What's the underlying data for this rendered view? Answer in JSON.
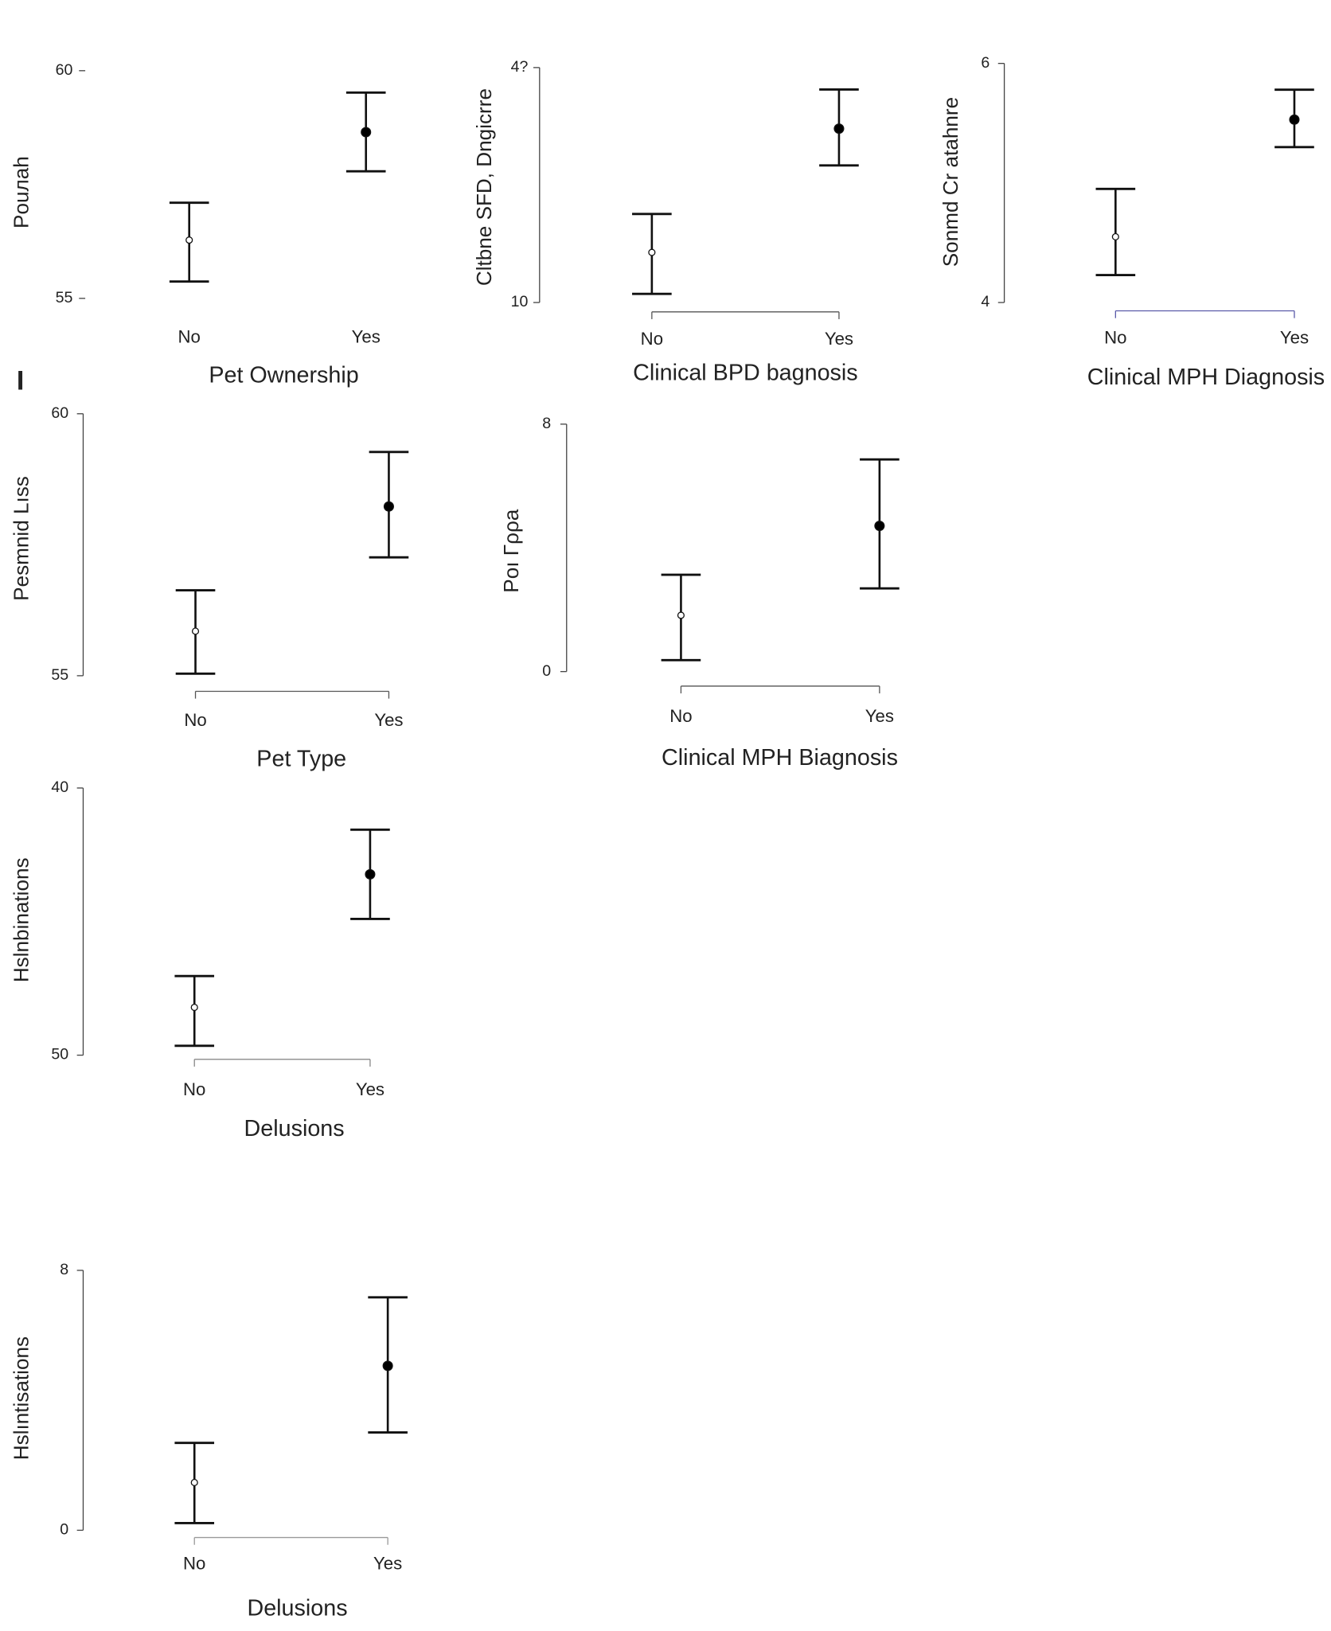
{
  "panel_label": "I",
  "chart_data": [
    {
      "type": "errorbar",
      "ylabel": "Pouлah",
      "xlabel": "Pet Ownership",
      "categories": [
        "No",
        "Yes"
      ],
      "values": [
        56.28,
        58.65
      ],
      "lower": [
        55.37,
        57.79
      ],
      "upper": [
        57.1,
        59.52
      ],
      "marker_colors": [
        "#ffffff",
        "#000000"
      ],
      "ylim": [
        55,
        60
      ],
      "yticks": [
        55,
        60
      ]
    },
    {
      "type": "errorbar",
      "ylabel": "Cltbne SFD, Dngicrre",
      "xlabel": "Clinical BPD bagnosis",
      "categories": [
        "No",
        "Yes"
      ],
      "values": [
        16.4,
        32.2
      ],
      "lower": [
        11.1,
        27.5
      ],
      "upper": [
        21.3,
        37.2
      ],
      "marker_colors": [
        "#ffffff",
        "#000000"
      ],
      "ylim": [
        10,
        40
      ],
      "yticks": [
        10,
        {
          "value": 40,
          "label": "4?"
        }
      ]
    },
    {
      "type": "errorbar",
      "ylabel": "Sonmd Cr atahnre",
      "xlabel": "Clinical MPH Diagnosis",
      "categories": [
        "No",
        "Yes"
      ],
      "values": [
        4.55,
        5.53
      ],
      "lower": [
        4.23,
        5.3
      ],
      "upper": [
        4.95,
        5.78
      ],
      "marker_colors": [
        "#ffffff",
        "#000000"
      ],
      "ylim": [
        4,
        6
      ],
      "yticks": [
        4,
        6
      ]
    },
    {
      "type": "errorbar",
      "ylabel": "Pesmnid Lıss",
      "xlabel": "Pet Type",
      "categories": [
        "No",
        "Yes"
      ],
      "values": [
        55.85,
        58.23
      ],
      "lower": [
        55.04,
        57.26
      ],
      "upper": [
        56.63,
        59.27
      ],
      "marker_colors": [
        "#ffffff",
        "#000000"
      ],
      "ylim": [
        55,
        60
      ],
      "yticks": [
        55,
        60
      ]
    },
    {
      "type": "errorbar",
      "ylabel": "Poı Γρρa",
      "xlabel": "Clinical MPH Biagnosis",
      "categories": [
        "No",
        "Yes"
      ],
      "values": [
        1.82,
        4.71
      ],
      "lower": [
        0.37,
        2.69
      ],
      "upper": [
        3.13,
        6.86
      ],
      "marker_colors": [
        "#ffffff",
        "#000000"
      ],
      "ylim": [
        0,
        8
      ],
      "yticks": [
        0,
        8
      ]
    },
    {
      "type": "errorbar",
      "ylabel": "Hslnbinations",
      "xlabel": "Delusions",
      "categories": [
        "No",
        "Yes"
      ],
      "values": [
        48.21,
        43.23
      ],
      "lower": [
        47.04,
        41.56
      ],
      "upper": [
        49.65,
        44.9
      ],
      "marker_colors": [
        "#ffffff",
        "#000000"
      ],
      "ylim": [
        50,
        40
      ],
      "yticks": [
        50,
        40
      ]
    },
    {
      "type": "errorbar",
      "ylabel": "Hslıntisations",
      "xlabel": "Delusions",
      "categories": [
        "No",
        "Yes"
      ],
      "values": [
        1.47,
        5.06
      ],
      "lower": [
        0.22,
        3.01
      ],
      "upper": [
        2.69,
        7.17
      ],
      "marker_colors": [
        "#ffffff",
        "#000000"
      ],
      "ylim": [
        0,
        8
      ],
      "yticks": [
        0,
        8
      ]
    }
  ]
}
